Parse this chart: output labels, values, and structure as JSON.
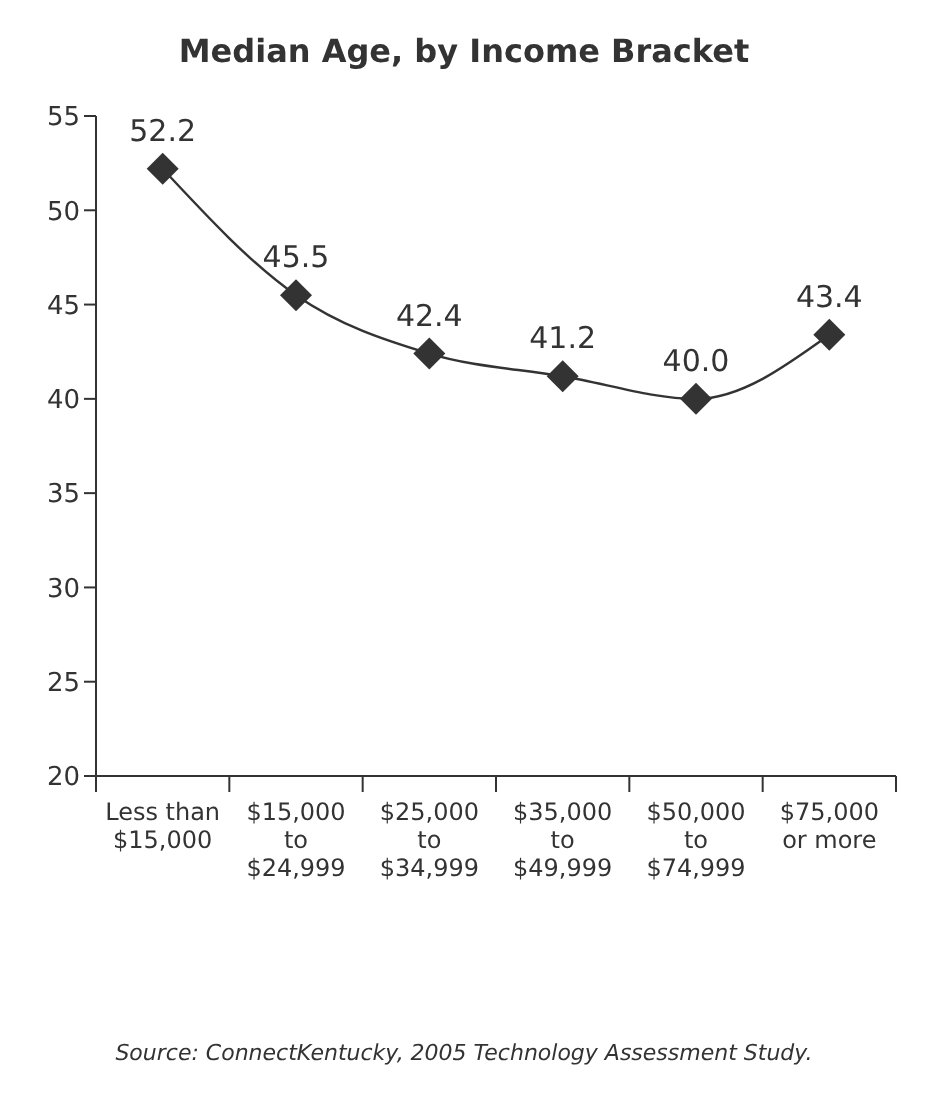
{
  "chart_data": {
    "type": "line",
    "title": "Median Age, by Income Bracket",
    "categories": [
      "Less than\n$15,000",
      "$15,000\nto\n$24,999",
      "$25,000\nto\n$34,999",
      "$35,000\nto\n$49,999",
      "$50,000\nto\n$74,999",
      "$75,000\nor more"
    ],
    "series": [
      {
        "color": "#333333",
        "values": [
          52.2,
          45.5,
          42.4,
          41.2,
          40.0,
          43.4
        ],
        "value_labels": [
          "52.2",
          "45.5",
          "42.4",
          "41.2",
          "40.0",
          "43.4"
        ]
      }
    ],
    "ylim": [
      20,
      55
    ],
    "yticks": [
      20,
      25,
      30,
      35,
      40,
      45,
      50,
      55
    ],
    "marker": "diamond",
    "line_style": "solid",
    "annotations": [
      "Source: ConnectKentucky, 2005 Technology Assessment Study."
    ]
  }
}
